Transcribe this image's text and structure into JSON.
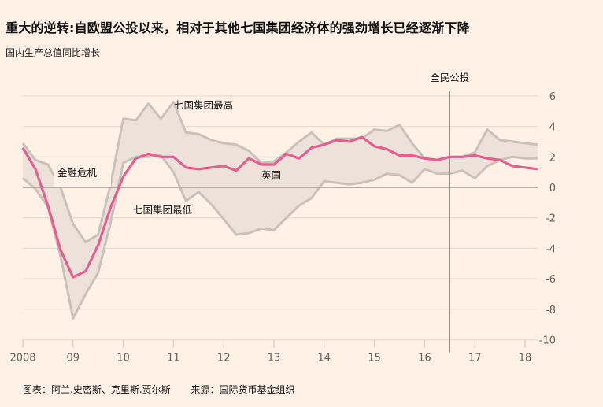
{
  "header": {
    "title": "重大的逆转:自欧盟公投以来，相对于其他七国集团经济体的强劲增长已经逐渐下降",
    "subtitle": "国内生产总值同比增长"
  },
  "annotations": {
    "financial_crisis": "金融危机",
    "g7_high": "七国集团最高",
    "g7_low": "七国集团最低",
    "uk": "英国",
    "referendum": "全民公投"
  },
  "footer": {
    "credit": "图表：阿兰.史密斯、克里斯.贾尔斯",
    "source": "来源：国际货币基金组织"
  },
  "colors": {
    "background": "#fff1e5",
    "uk_line": "#e45f8f",
    "band_fill": "#ede2da",
    "band_edge": "#c9c1ba",
    "gridline": "#e9ddd3",
    "zero_line": "#9e958e",
    "referendum_line": "#8f8780",
    "tick_text": "#66605c"
  },
  "chart_data": {
    "type": "line",
    "title": "重大的逆转:自欧盟公投以来，相对于其他七国集团经济体的强劲增长已经逐渐下降",
    "subtitle": "国内生产总值同比增长",
    "xlabel": "",
    "ylabel": "国内生产总值同比增长 (%)",
    "x_tick_labels": [
      "2008",
      "09",
      "10",
      "11",
      "12",
      "13",
      "14",
      "15",
      "16",
      "17",
      "18"
    ],
    "x_tick_years": [
      2008,
      2009,
      2010,
      2011,
      2012,
      2013,
      2014,
      2015,
      2016,
      2017,
      2018
    ],
    "y_ticks": [
      6,
      4,
      2,
      0,
      -2,
      -4,
      -6,
      -8,
      -10
    ],
    "ylim": [
      -10,
      6
    ],
    "xlim": [
      2008,
      2018.25
    ],
    "grid": true,
    "y_axis_position": "right",
    "x": [
      2008.0,
      2008.25,
      2008.5,
      2008.75,
      2009.0,
      2009.25,
      2009.5,
      2009.75,
      2010.0,
      2010.25,
      2010.5,
      2010.75,
      2011.0,
      2011.25,
      2011.5,
      2011.75,
      2012.0,
      2012.25,
      2012.5,
      2012.75,
      2013.0,
      2013.25,
      2013.5,
      2013.75,
      2014.0,
      2014.25,
      2014.5,
      2014.75,
      2015.0,
      2015.25,
      2015.5,
      2015.75,
      2016.0,
      2016.25,
      2016.5,
      2016.75,
      2017.0,
      2017.25,
      2017.5,
      2017.75,
      2018.0,
      2018.25
    ],
    "series": [
      {
        "name": "英国",
        "role": "line",
        "values": [
          2.6,
          1.2,
          -1.2,
          -4.1,
          -5.9,
          -5.5,
          -3.8,
          -1.3,
          0.7,
          1.9,
          2.2,
          2.0,
          2.0,
          1.3,
          1.2,
          1.3,
          1.4,
          1.1,
          1.9,
          1.5,
          1.5,
          2.2,
          1.9,
          2.6,
          2.8,
          3.1,
          3.0,
          3.3,
          2.7,
          2.5,
          2.1,
          2.1,
          1.9,
          1.8,
          2.0,
          2.0,
          2.1,
          1.9,
          1.8,
          1.4,
          1.3,
          1.2
        ]
      },
      {
        "name": "七国集团最高",
        "role": "band_upper",
        "values": [
          2.9,
          1.8,
          1.5,
          0.0,
          -2.4,
          -3.6,
          -3.1,
          0.2,
          4.5,
          4.4,
          5.5,
          4.5,
          5.6,
          3.6,
          3.5,
          3.1,
          2.9,
          2.8,
          2.4,
          1.6,
          1.7,
          2.3,
          3.0,
          3.6,
          2.8,
          3.2,
          3.2,
          3.2,
          3.8,
          3.7,
          4.1,
          2.9,
          1.9,
          1.8,
          2.0,
          2.0,
          2.3,
          3.8,
          3.1,
          3.0,
          2.9,
          2.8
        ]
      },
      {
        "name": "七国集团最低",
        "role": "band_lower",
        "values": [
          0.6,
          -0.1,
          -1.3,
          -4.5,
          -8.6,
          -7.0,
          -5.6,
          -2.3,
          1.6,
          2.0,
          2.0,
          2.1,
          1.0,
          -0.9,
          -0.3,
          -1.1,
          -2.1,
          -3.1,
          -3.0,
          -2.7,
          -2.8,
          -2.0,
          -1.2,
          -0.7,
          0.4,
          0.3,
          0.2,
          0.3,
          0.5,
          0.9,
          0.8,
          0.3,
          1.2,
          0.9,
          0.9,
          1.1,
          0.6,
          1.4,
          1.8,
          2.0,
          1.9,
          1.9
        ]
      }
    ],
    "annotations": [
      {
        "text": "金融危机",
        "x": 2008.7,
        "y": 1.0
      },
      {
        "text": "七国集团最高",
        "x": 2011.05,
        "y": 5.5
      },
      {
        "text": "七国集团最低",
        "x": 2010.2,
        "y": -1.5
      },
      {
        "text": "英国",
        "x": 2012.75,
        "y": 0.8
      },
      {
        "text": "全民公投",
        "x": 2016.5,
        "y": 7.4,
        "vertical_line": 2016.5
      }
    ]
  }
}
